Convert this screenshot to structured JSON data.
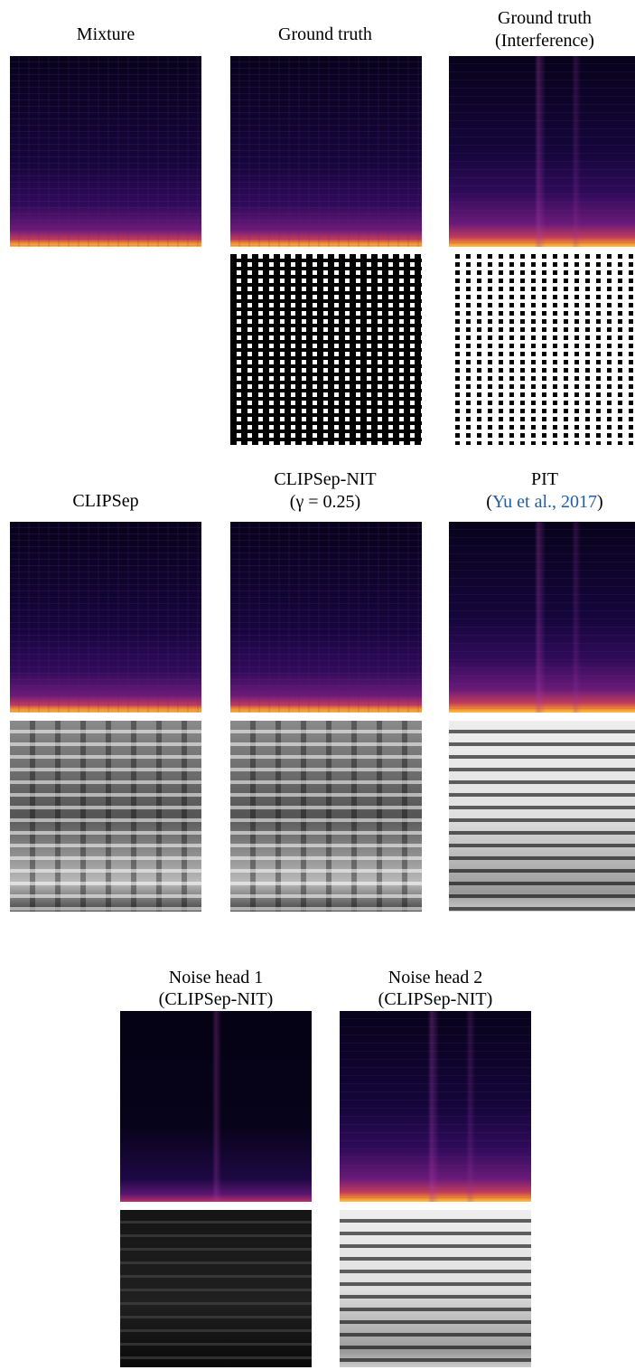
{
  "panels": [
    {
      "title": [
        "Mixture"
      ]
    },
    {
      "title": [
        "Ground truth"
      ]
    },
    {
      "title": [
        "Ground truth",
        "(Interference)"
      ]
    },
    {
      "title": [
        "CLIPSep"
      ]
    },
    {
      "title": [
        "CLIPSep-NIT",
        "(γ = 0.25)"
      ]
    },
    {
      "title": [
        "PIT"
      ],
      "citation": {
        "before": "(",
        "text": "Yu et al., 2017",
        "after": ")"
      }
    },
    {
      "title": [
        "Noise head 1",
        "(CLIPSep-NIT)"
      ]
    },
    {
      "title": [
        "Noise head 2",
        "(CLIPSep-NIT)"
      ]
    }
  ]
}
